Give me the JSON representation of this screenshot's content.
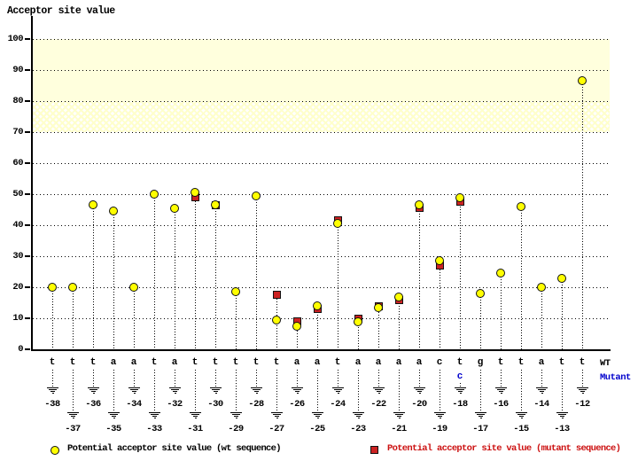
{
  "title": "Acceptor site value",
  "row_labels": {
    "wt": "WT",
    "mutant": "Mutant"
  },
  "legend": {
    "wt_label": "Potential acceptor site value (wt sequence)",
    "mutant_label": "Potential acceptor site value (mutant sequence)"
  },
  "colors": {
    "wt_marker": "#ffff00",
    "mutant_marker": "#cc2222",
    "mutant_legend_text": "#cc1111",
    "mutant_base_text": "#0000cc",
    "band_solid": "#ffffdd",
    "band_hatch": "#ffffcc",
    "grid": "#000000"
  },
  "chart_data": {
    "type": "scatter",
    "title": "Acceptor site value",
    "xlabel": "",
    "ylabel": "Acceptor site value",
    "ylim": [
      0,
      107
    ],
    "yticks": [
      0,
      10,
      20,
      30,
      40,
      50,
      60,
      70,
      80,
      90,
      100
    ],
    "grid": "horizontal-dotted",
    "legend_position": "bottom",
    "highlight_bands": [
      {
        "from": 80,
        "to": 100,
        "style": "solid"
      },
      {
        "from": 70,
        "to": 80,
        "style": "hatched"
      }
    ],
    "positions": [
      -38,
      -37,
      -36,
      -35,
      -34,
      -33,
      -32,
      -31,
      -30,
      -29,
      -28,
      -27,
      -26,
      -25,
      -24,
      -23,
      -22,
      -21,
      -20,
      -19,
      -18,
      -17,
      -16,
      -15,
      -14,
      -13,
      -12
    ],
    "wt_bases": [
      "t",
      "t",
      "t",
      "a",
      "a",
      "t",
      "a",
      "t",
      "t",
      "t",
      "t",
      "t",
      "a",
      "a",
      "t",
      "a",
      "a",
      "a",
      "a",
      "c",
      "t",
      "g",
      "t",
      "t",
      "a",
      "t",
      "t"
    ],
    "mutant_bases": [
      null,
      null,
      null,
      null,
      null,
      null,
      null,
      null,
      null,
      null,
      null,
      null,
      null,
      null,
      null,
      null,
      null,
      null,
      null,
      null,
      "c",
      null,
      null,
      null,
      null,
      null,
      null
    ],
    "series": [
      {
        "name": "Potential acceptor site value (wt sequence)",
        "marker": "circle",
        "color": "#ffff00",
        "values": [
          20,
          20,
          46.5,
          44.5,
          20,
          50,
          45.5,
          50.5,
          46.5,
          18.5,
          49.5,
          9.5,
          7.5,
          14,
          40.5,
          9,
          13.5,
          17,
          46.5,
          28.5,
          49,
          18,
          24.5,
          46,
          20,
          23,
          86.5
        ]
      },
      {
        "name": "Potential acceptor site value (mutant sequence)",
        "marker": "square",
        "color": "#cc2222",
        "values": [
          null,
          null,
          null,
          null,
          null,
          null,
          null,
          49,
          46.5,
          null,
          null,
          17.5,
          9,
          13,
          41.5,
          10,
          14,
          16,
          45.5,
          27,
          47.5,
          null,
          null,
          null,
          null,
          null,
          null
        ]
      }
    ]
  }
}
